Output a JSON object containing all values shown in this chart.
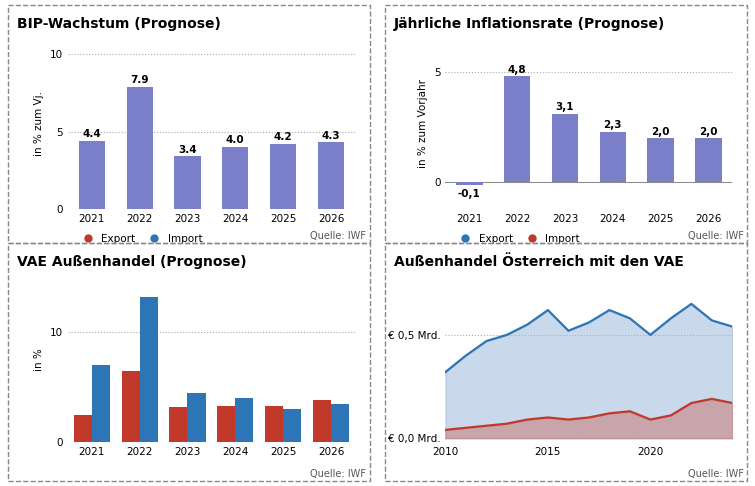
{
  "bip": {
    "title": "BIP-Wachstum (Prognose)",
    "ylabel": "in % zum Vj.",
    "years": [
      "2021",
      "2022",
      "2023",
      "2024",
      "2025",
      "2026"
    ],
    "values": [
      4.4,
      7.9,
      3.4,
      4.0,
      4.2,
      4.3
    ],
    "bar_color": "#7B7EC8",
    "ylim": [
      0,
      11
    ],
    "yticks": [
      0,
      5,
      10
    ],
    "source": "Quelle: IWF"
  },
  "inflation": {
    "title": "Jährliche Inflationsrate (Prognose)",
    "ylabel": "in % zum Vorjahr",
    "years": [
      "2021",
      "2022",
      "2023",
      "2024",
      "2025",
      "2026"
    ],
    "values": [
      -0.1,
      4.8,
      3.1,
      2.3,
      2.0,
      2.0
    ],
    "bar_color": "#7B7EC8",
    "ylim": [
      -1.2,
      6.5
    ],
    "yticks": [
      0,
      5
    ],
    "source": "Quelle: IWF"
  },
  "vae": {
    "title": "VAE Außenhandel (Prognose)",
    "ylabel": "in %",
    "years": [
      "2021",
      "2022",
      "2023",
      "2024",
      "2025",
      "2026"
    ],
    "export": [
      2.5,
      6.5,
      3.2,
      3.3,
      3.3,
      3.8
    ],
    "import_vals": [
      7.0,
      13.2,
      4.5,
      4.0,
      3.0,
      3.5
    ],
    "export_color": "#C0392B",
    "import_color": "#2E75B6",
    "ylim": [
      0,
      15
    ],
    "yticks": [
      0,
      10
    ],
    "legend_export": "Export",
    "legend_import": "Import",
    "source": "Quelle: IWF"
  },
  "austria": {
    "title": "Außenhandel Österreich mit den VAE",
    "years_line": [
      2010,
      2011,
      2012,
      2013,
      2014,
      2015,
      2016,
      2017,
      2018,
      2019,
      2020,
      2021,
      2022,
      2023,
      2024
    ],
    "export_line": [
      0.32,
      0.4,
      0.47,
      0.5,
      0.55,
      0.62,
      0.52,
      0.56,
      0.62,
      0.58,
      0.5,
      0.58,
      0.65,
      0.57,
      0.54
    ],
    "import_line": [
      0.04,
      0.05,
      0.06,
      0.07,
      0.09,
      0.1,
      0.09,
      0.1,
      0.12,
      0.13,
      0.09,
      0.11,
      0.17,
      0.19,
      0.17
    ],
    "export_color": "#2E75B6",
    "import_color": "#C0392B",
    "fill_export": "#9DB8D9",
    "fill_import": "#C8888A",
    "ytick_labels": [
      "€ 0,0 Mrd.",
      "€ 0,5 Mrd."
    ],
    "ytick_vals": [
      0.0,
      0.5
    ],
    "ylim": [
      -0.02,
      0.78
    ],
    "legend_export": "Export",
    "legend_import": "Import",
    "source": "Quelle: IWF"
  },
  "bg_color": "#ffffff",
  "title_fontsize": 10,
  "label_fontsize": 7.5,
  "tick_fontsize": 7.5,
  "source_fontsize": 7,
  "annot_fontsize": 7.5
}
